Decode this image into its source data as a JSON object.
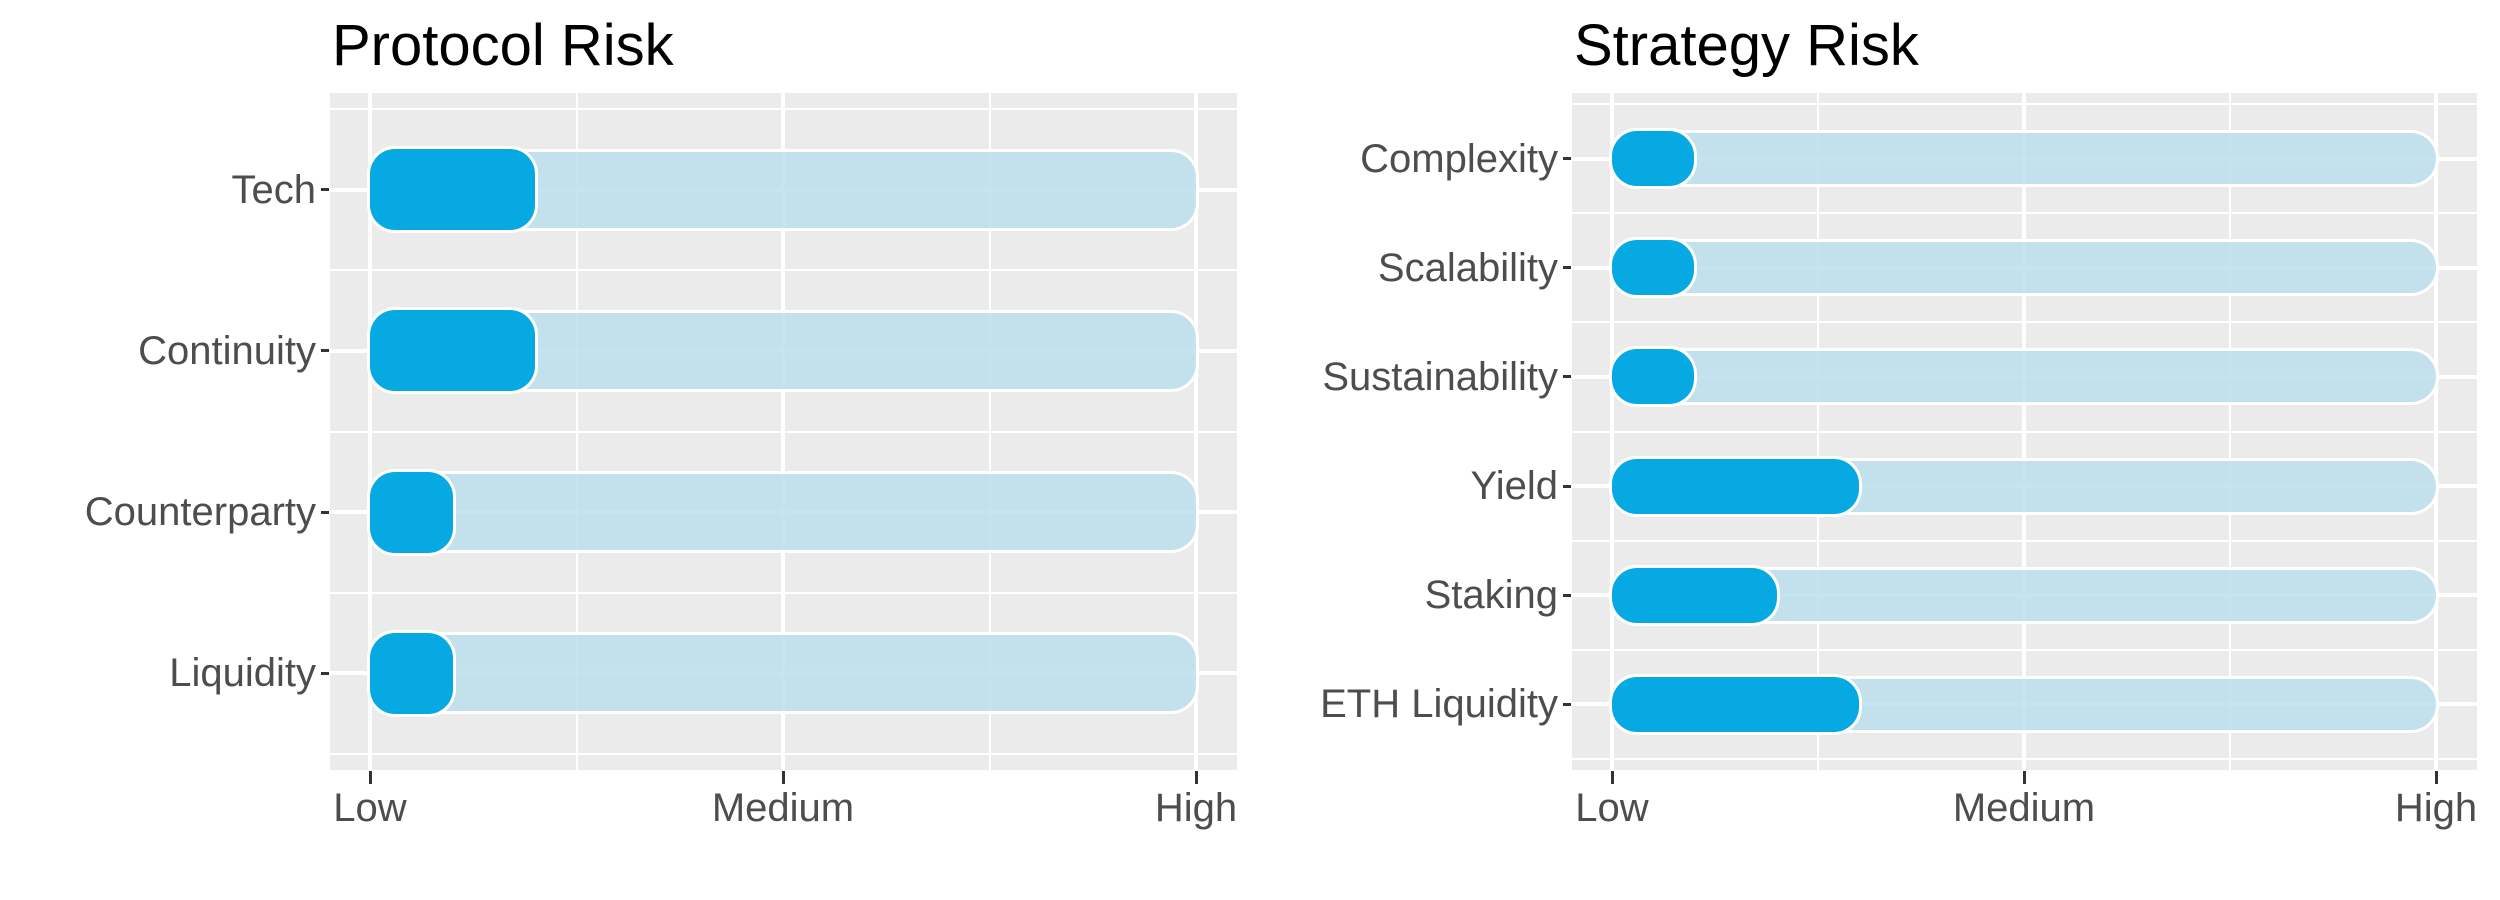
{
  "page": {
    "background": "#FFFFFF",
    "description": "Two horizontal rounded-bar risk charts on grey ggplot-style panels"
  },
  "chart_data": [
    {
      "type": "bar",
      "orientation": "horizontal",
      "title": "Protocol Risk",
      "categories": [
        "Tech",
        "Continuity",
        "Counterparty",
        "Liquidity"
      ],
      "values": [
        2,
        2,
        1,
        1
      ],
      "track_value": 10,
      "xlim": [
        0,
        10
      ],
      "x_ticks": [
        {
          "label": "Low",
          "value": 0
        },
        {
          "label": "Medium",
          "value": 5
        },
        {
          "label": "High",
          "value": 10
        }
      ],
      "xlabel": "",
      "ylabel": "",
      "grid": "on",
      "legend": "none"
    },
    {
      "type": "bar",
      "orientation": "horizontal",
      "title": "Strategy Risk",
      "categories": [
        "Complexity",
        "Scalability",
        "Sustainability",
        "Yield",
        "Staking",
        "ETH Liquidity"
      ],
      "values": [
        1,
        1,
        1,
        3,
        2,
        3
      ],
      "track_value": 10,
      "xlim": [
        0,
        10
      ],
      "x_ticks": [
        {
          "label": "Low",
          "value": 0
        },
        {
          "label": "Medium",
          "value": 5
        },
        {
          "label": "High",
          "value": 10
        }
      ],
      "xlabel": "",
      "ylabel": "",
      "grid": "on",
      "legend": "none"
    }
  ],
  "colors": {
    "bar_value": "#06A9E1",
    "bar_track_rgba": "rgba(186,222,237,0.82)",
    "bar_outline": "#FFFFFF",
    "panel_background": "#EBEBEB",
    "gridline": "#FFFFFF",
    "axis_text": "#4D4D4D",
    "tick_mark": "#333333",
    "title_text": "#000000"
  }
}
